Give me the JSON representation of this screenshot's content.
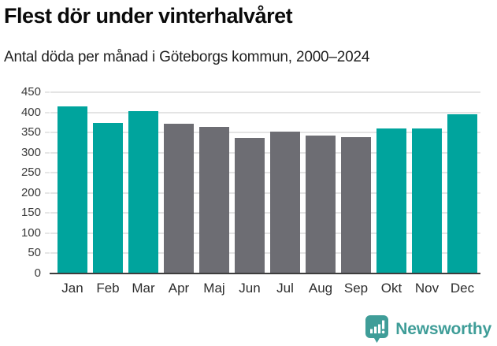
{
  "header": {
    "title": "Flest dör under vinterhalvåret",
    "subtitle": "Antal döda per månad i Göteborgs kommun, 2000–2024"
  },
  "chart_data": {
    "type": "bar",
    "title": "Flest dör under vinterhalvåret",
    "subtitle": "Antal döda per månad i Göteborgs kommun, 2000–2024",
    "categories": [
      "Jan",
      "Feb",
      "Mar",
      "Apr",
      "Maj",
      "Jun",
      "Jul",
      "Aug",
      "Sep",
      "Okt",
      "Nov",
      "Dec"
    ],
    "values": [
      415,
      374,
      404,
      371,
      363,
      336,
      353,
      342,
      339,
      360,
      360,
      395
    ],
    "bar_colors": [
      "#00a49d",
      "#00a49d",
      "#00a49d",
      "#6d6d73",
      "#6d6d73",
      "#6d6d73",
      "#6d6d73",
      "#6d6d73",
      "#6d6d73",
      "#00a49d",
      "#00a49d",
      "#00a49d"
    ],
    "highlight_color": "#00a49d",
    "muted_color": "#6d6d73",
    "xlabel": "",
    "ylabel": "",
    "ylim": [
      0,
      450
    ],
    "y_ticks": [
      0,
      50,
      100,
      150,
      200,
      250,
      300,
      350,
      400,
      450
    ],
    "grid": true,
    "legend": "none",
    "gridline_color": "#e4e4e4",
    "baseline_color": "#3d3d3d"
  },
  "footer": {
    "brand": "Newsworthy",
    "brand_color": "#3f9d98",
    "logo_icon": "newsworthy-speech-bubble-chart-icon"
  }
}
